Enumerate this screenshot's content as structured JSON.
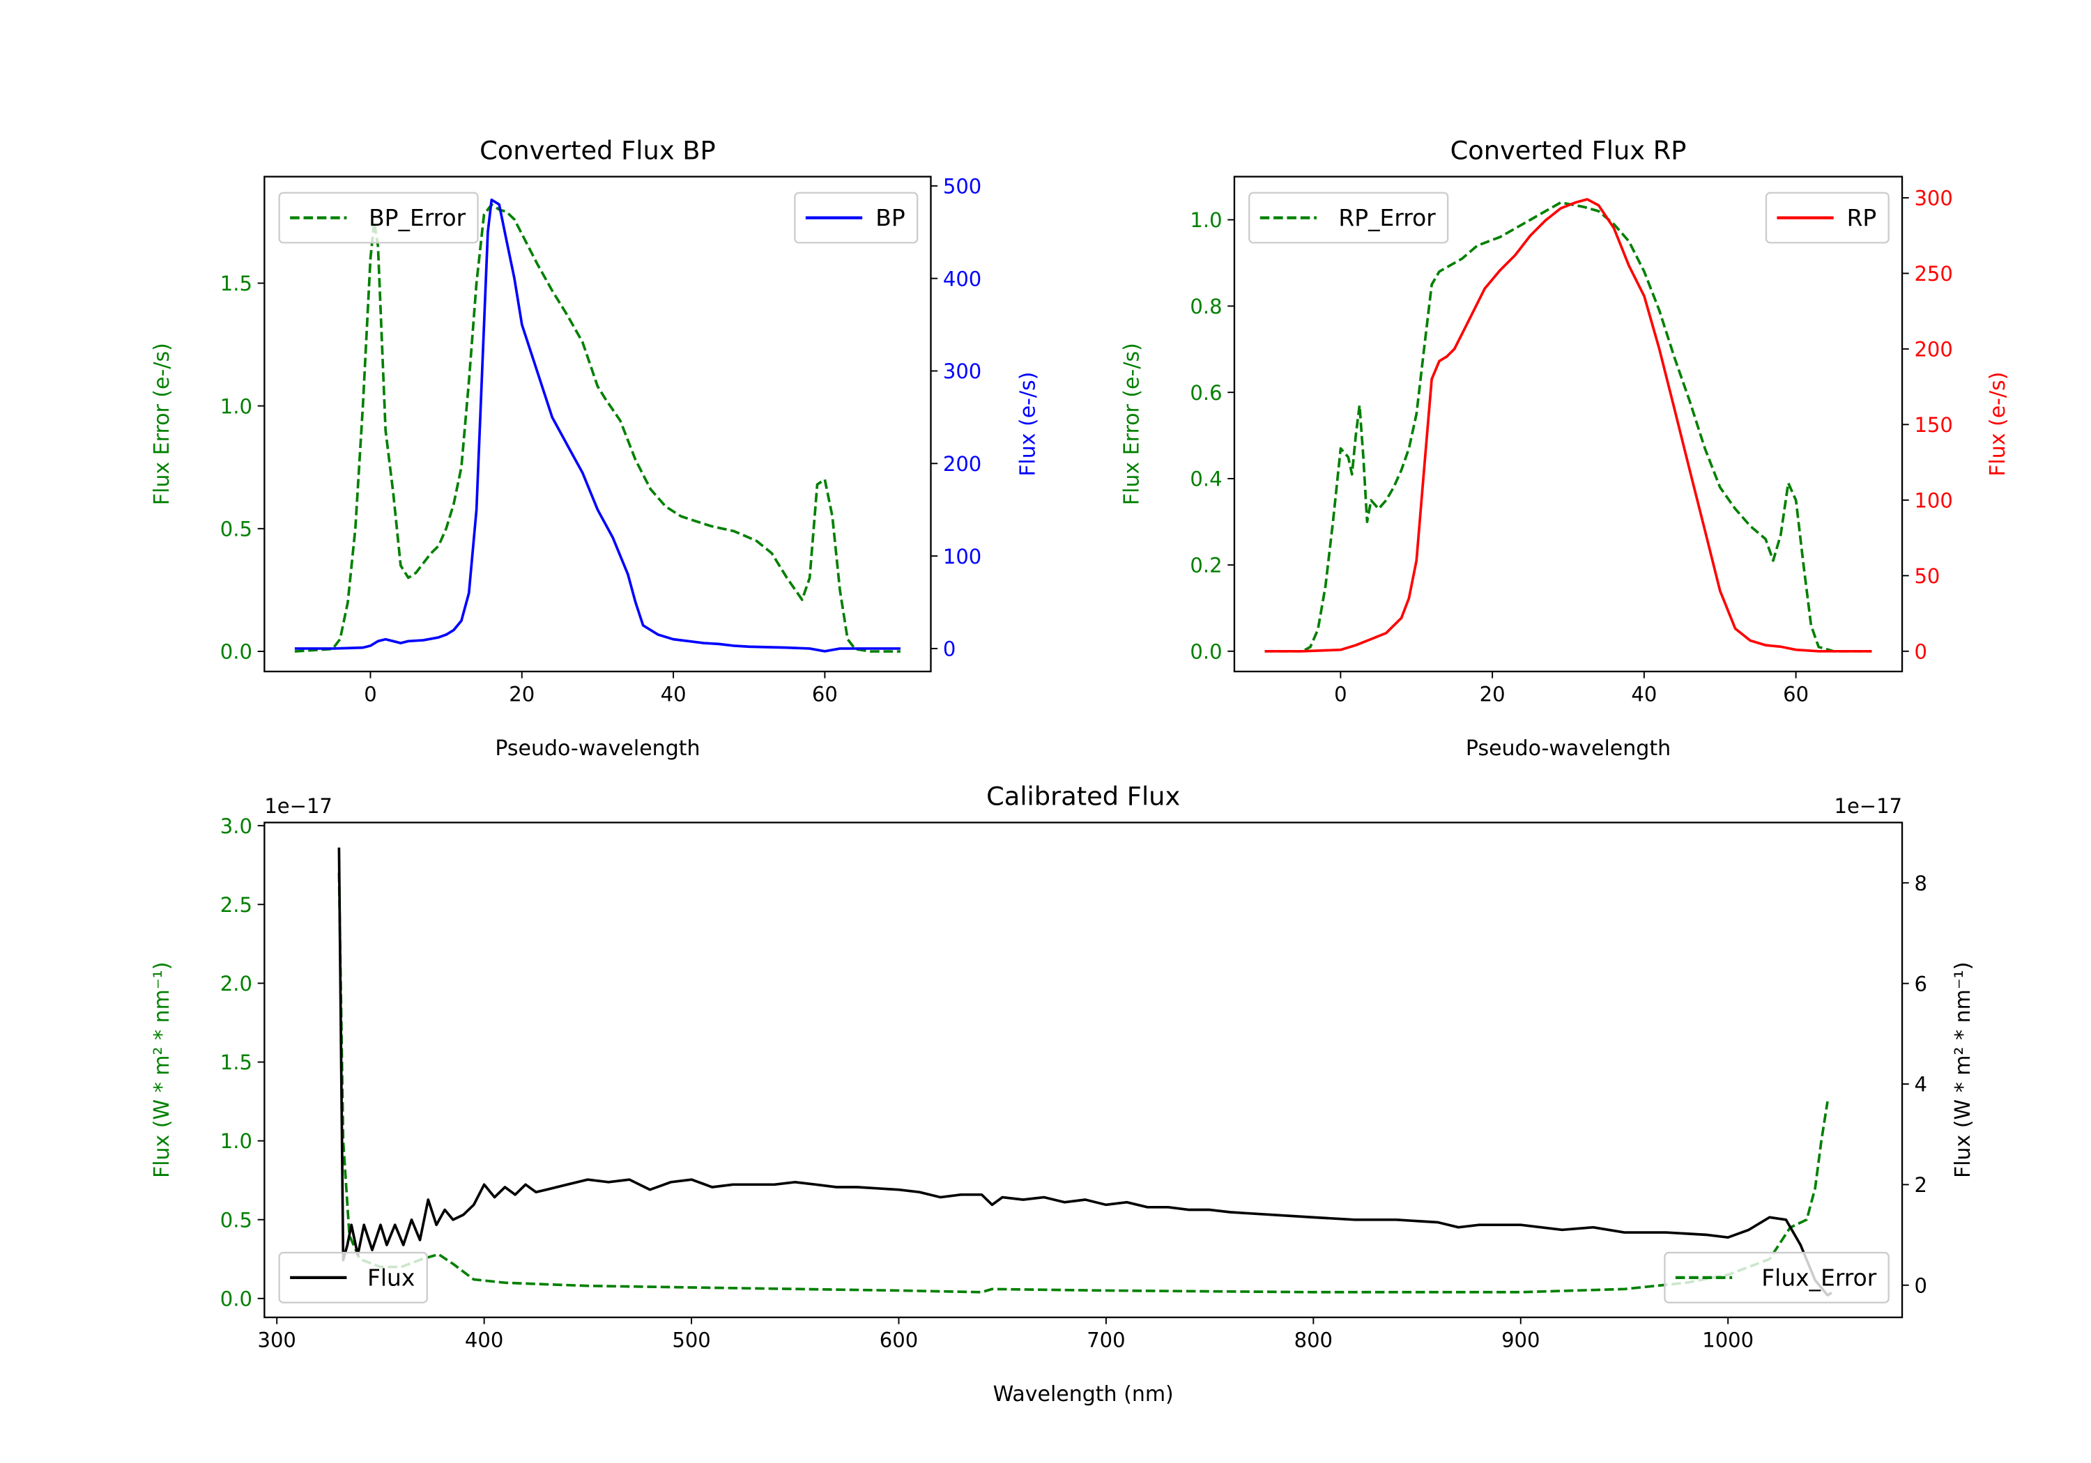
{
  "chart_data": [
    {
      "type": "line",
      "title": "Converted Flux BP",
      "xlabel": "Pseudo-wavelength",
      "xlim": [
        -14,
        74
      ],
      "xticks": [
        0,
        20,
        40,
        60
      ],
      "xtick_labels": [
        "0",
        "20",
        "40",
        "60"
      ],
      "left_axis": {
        "label": "Flux Error (e-/s)",
        "color": "#008000",
        "ylim": [
          -0.082,
          1.934
        ],
        "ticks": [
          0,
          0.5,
          1.0,
          1.5
        ],
        "tick_labels": [
          "0.0",
          "0.5",
          "1.0",
          "1.5"
        ]
      },
      "right_axis": {
        "label": "Flux (e-/s)",
        "color": "#0000ff",
        "ylim": [
          -24.8,
          510
        ],
        "ticks": [
          0,
          100,
          200,
          300,
          400,
          500
        ],
        "tick_labels": [
          "0",
          "100",
          "200",
          "300",
          "400",
          "500"
        ]
      },
      "series": [
        {
          "name": "BP_Error",
          "axis": "left",
          "color": "#008000",
          "style": "dashed",
          "legend": "upper left",
          "x": [
            -10,
            -5,
            -4,
            -3,
            -2,
            -1,
            0,
            0.5,
            1,
            2,
            3,
            4,
            5,
            6,
            7,
            8,
            9,
            10,
            11,
            12,
            13,
            14,
            15,
            16,
            17,
            18,
            19,
            20,
            22,
            24,
            26,
            28,
            30,
            31,
            33,
            35,
            37,
            39,
            41,
            43,
            45,
            48,
            51,
            53,
            55,
            57,
            58,
            59,
            60,
            61,
            62,
            63,
            64,
            66,
            70
          ],
          "y": [
            0,
            0.01,
            0.05,
            0.2,
            0.5,
            1.0,
            1.6,
            1.75,
            1.65,
            0.9,
            0.65,
            0.35,
            0.3,
            0.32,
            0.36,
            0.4,
            0.43,
            0.5,
            0.6,
            0.75,
            1.1,
            1.5,
            1.78,
            1.82,
            1.8,
            1.79,
            1.76,
            1.7,
            1.58,
            1.47,
            1.37,
            1.26,
            1.08,
            1.03,
            0.94,
            0.78,
            0.66,
            0.59,
            0.55,
            0.53,
            0.51,
            0.49,
            0.45,
            0.4,
            0.3,
            0.21,
            0.3,
            0.68,
            0.7,
            0.55,
            0.25,
            0.05,
            0.01,
            0,
            0
          ]
        },
        {
          "name": "BP",
          "axis": "right",
          "color": "#0000ff",
          "style": "solid",
          "legend": "upper right",
          "x": [
            -10,
            -5,
            -1,
            0,
            1,
            2,
            3,
            4,
            5,
            7,
            9,
            10,
            11,
            12,
            13,
            14,
            15,
            15.5,
            16,
            17,
            18,
            19,
            20,
            22,
            24,
            26,
            28,
            30,
            32,
            34,
            35,
            36,
            38,
            40,
            42,
            44,
            46,
            48,
            50,
            55,
            58,
            60,
            62,
            65,
            70
          ],
          "y": [
            0,
            0,
            1,
            3,
            8,
            10,
            8,
            6,
            8,
            9,
            12,
            15,
            20,
            30,
            60,
            150,
            350,
            450,
            485,
            480,
            440,
            400,
            350,
            300,
            250,
            220,
            190,
            150,
            120,
            80,
            50,
            25,
            15,
            10,
            8,
            6,
            5,
            3,
            2,
            1,
            0,
            -3,
            0,
            0,
            0
          ]
        }
      ]
    },
    {
      "type": "line",
      "title": "Converted Flux RP",
      "xlabel": "Pseudo-wavelength",
      "xlim": [
        -14,
        74
      ],
      "xticks": [
        0,
        20,
        40,
        60
      ],
      "xtick_labels": [
        "0",
        "20",
        "40",
        "60"
      ],
      "left_axis": {
        "label": "Flux Error (e-/s)",
        "color": "#008000",
        "ylim": [
          -0.047,
          1.1
        ],
        "ticks": [
          0,
          0.2,
          0.4,
          0.6,
          0.8,
          1.0
        ],
        "tick_labels": [
          "0.0",
          "0.2",
          "0.4",
          "0.6",
          "0.8",
          "1.0"
        ]
      },
      "right_axis": {
        "label": "Flux (e-/s)",
        "color": "#ff0000",
        "ylim": [
          -13.4,
          314
        ],
        "ticks": [
          0,
          50,
          100,
          150,
          200,
          250,
          300
        ],
        "tick_labels": [
          "0",
          "50",
          "100",
          "150",
          "200",
          "250",
          "300"
        ]
      },
      "series": [
        {
          "name": "RP_Error",
          "axis": "left",
          "color": "#008000",
          "style": "dashed",
          "legend": "upper left",
          "x": [
            -10,
            -5,
            -4,
            -3,
            -2,
            -1,
            0,
            1,
            1.5,
            2,
            2.5,
            3,
            3.5,
            4,
            5,
            6,
            7,
            8,
            9,
            10,
            11,
            12,
            13,
            16,
            18,
            21,
            24,
            27,
            29,
            32,
            34,
            36,
            38,
            40,
            42,
            44,
            46,
            48,
            50,
            52,
            54,
            56,
            57,
            58,
            59,
            60,
            61,
            62,
            63,
            65,
            70
          ],
          "y": [
            0,
            0,
            0.01,
            0.05,
            0.15,
            0.3,
            0.47,
            0.45,
            0.41,
            0.5,
            0.57,
            0.45,
            0.3,
            0.35,
            0.33,
            0.35,
            0.38,
            0.42,
            0.47,
            0.55,
            0.7,
            0.85,
            0.88,
            0.91,
            0.94,
            0.96,
            0.99,
            1.02,
            1.04,
            1.03,
            1.02,
            0.99,
            0.95,
            0.88,
            0.79,
            0.68,
            0.58,
            0.47,
            0.38,
            0.33,
            0.29,
            0.26,
            0.21,
            0.27,
            0.39,
            0.35,
            0.2,
            0.06,
            0.01,
            0,
            0
          ]
        },
        {
          "name": "RP",
          "axis": "right",
          "color": "#ff0000",
          "style": "solid",
          "legend": "upper right",
          "x": [
            -10,
            -5,
            0,
            2,
            4,
            6,
            8,
            9,
            10,
            11,
            12,
            13,
            14,
            15,
            17,
            19,
            21,
            23,
            25,
            27,
            29,
            31,
            32.5,
            34,
            36,
            38,
            40,
            42,
            44,
            46,
            48,
            50,
            52,
            54,
            56,
            58,
            60,
            63,
            70
          ],
          "y": [
            0,
            0,
            1,
            4,
            8,
            12,
            22,
            35,
            60,
            120,
            180,
            192,
            195,
            200,
            220,
            240,
            252,
            262,
            275,
            285,
            293,
            297,
            299,
            295,
            280,
            255,
            235,
            200,
            160,
            120,
            80,
            40,
            15,
            7,
            4,
            3,
            1,
            0,
            0
          ]
        }
      ]
    },
    {
      "type": "line",
      "title": "Calibrated Flux",
      "xlabel": "Wavelength (nm)",
      "xlim": [
        294,
        1084
      ],
      "xticks": [
        300,
        400,
        500,
        600,
        700,
        800,
        900,
        1000
      ],
      "xtick_labels": [
        "300",
        "400",
        "500",
        "600",
        "700",
        "800",
        "900",
        "1000"
      ],
      "left_axis": {
        "label": "Flux (W * m² * nm⁻¹)",
        "color": "#008000",
        "offset_text": "1e−17",
        "ylim": [
          -0.12,
          3.02
        ],
        "ticks": [
          0,
          0.5,
          1.0,
          1.5,
          2.0,
          2.5,
          3.0
        ],
        "tick_labels": [
          "0.0",
          "0.5",
          "1.0",
          "1.5",
          "2.0",
          "2.5",
          "3.0"
        ]
      },
      "right_axis": {
        "label": "Flux (W * m² * nm⁻¹)",
        "color": "#000000",
        "offset_text": "1e−17",
        "ylim": [
          -0.64,
          9.2
        ],
        "ticks": [
          0,
          2,
          4,
          6,
          8
        ],
        "tick_labels": [
          "0",
          "2",
          "4",
          "6",
          "8"
        ]
      },
      "series": [
        {
          "name": "Flux_Error",
          "axis": "left",
          "color": "#008000",
          "style": "dashed",
          "legend": "lower right",
          "x": [
            330,
            332,
            335,
            340,
            350,
            360,
            370,
            378,
            385,
            395,
            410,
            430,
            450,
            500,
            600,
            640,
            645,
            700,
            800,
            900,
            950,
            980,
            1000,
            1020,
            1030,
            1038,
            1042,
            1045,
            1048
          ],
          "y": [
            2.7,
            1.0,
            0.4,
            0.25,
            0.2,
            0.2,
            0.25,
            0.28,
            0.22,
            0.12,
            0.1,
            0.09,
            0.08,
            0.07,
            0.05,
            0.04,
            0.06,
            0.05,
            0.04,
            0.04,
            0.06,
            0.1,
            0.15,
            0.25,
            0.45,
            0.5,
            0.7,
            1.0,
            1.25
          ]
        },
        {
          "name": "Flux",
          "axis": "right",
          "color": "#000000",
          "style": "solid",
          "legend": "lower left",
          "x": [
            330,
            332,
            334,
            336,
            339,
            342,
            346,
            350,
            353,
            357,
            361,
            365,
            369,
            373,
            377,
            381,
            385,
            390,
            395,
            400,
            405,
            410,
            415,
            420,
            425,
            430,
            440,
            450,
            460,
            470,
            480,
            490,
            500,
            510,
            520,
            530,
            540,
            550,
            560,
            570,
            580,
            600,
            610,
            620,
            630,
            640,
            645,
            650,
            660,
            670,
            680,
            690,
            700,
            710,
            720,
            730,
            740,
            750,
            760,
            780,
            800,
            820,
            840,
            860,
            870,
            880,
            900,
            920,
            935,
            950,
            970,
            990,
            1000,
            1010,
            1020,
            1028,
            1035,
            1042,
            1048,
            1050
          ],
          "y": [
            8.7,
            0.5,
            0.8,
            1.2,
            0.6,
            1.2,
            0.7,
            1.2,
            0.8,
            1.2,
            0.8,
            1.3,
            0.9,
            1.7,
            1.2,
            1.5,
            1.3,
            1.4,
            1.6,
            2.0,
            1.75,
            1.95,
            1.8,
            2.0,
            1.85,
            1.9,
            2.0,
            2.1,
            2.05,
            2.1,
            1.9,
            2.05,
            2.1,
            1.95,
            2.0,
            2.0,
            2.0,
            2.05,
            2.0,
            1.95,
            1.95,
            1.9,
            1.85,
            1.75,
            1.8,
            1.8,
            1.6,
            1.75,
            1.7,
            1.75,
            1.65,
            1.7,
            1.6,
            1.65,
            1.55,
            1.55,
            1.5,
            1.5,
            1.45,
            1.4,
            1.35,
            1.3,
            1.3,
            1.25,
            1.15,
            1.2,
            1.2,
            1.1,
            1.15,
            1.05,
            1.05,
            1.0,
            0.95,
            1.1,
            1.35,
            1.3,
            0.8,
            0.1,
            -0.2,
            -0.15
          ]
        }
      ]
    }
  ]
}
